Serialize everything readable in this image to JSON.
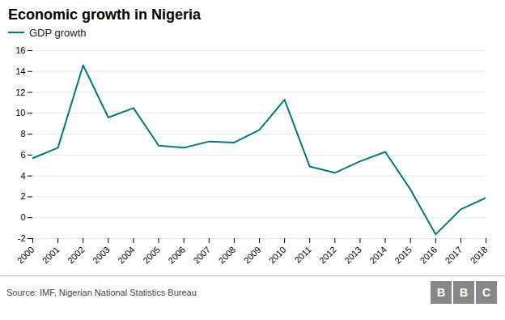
{
  "chart_data": {
    "type": "line",
    "title": "Economic growth in Nigeria",
    "x": [
      2000,
      2001,
      2002,
      2003,
      2004,
      2005,
      2006,
      2007,
      2008,
      2009,
      2010,
      2011,
      2012,
      2013,
      2014,
      2015,
      2016,
      2017,
      2018
    ],
    "series": [
      {
        "name": "GDP growth",
        "color": "#007a7a",
        "values": [
          5.7,
          6.7,
          14.6,
          9.6,
          10.5,
          6.9,
          6.7,
          7.3,
          7.2,
          8.4,
          11.3,
          4.9,
          4.3,
          5.4,
          6.3,
          2.7,
          -1.6,
          0.8,
          1.9
        ]
      }
    ],
    "xlim": [
      2000,
      2018
    ],
    "xticks": [
      2000,
      2001,
      2002,
      2003,
      2004,
      2005,
      2006,
      2007,
      2008,
      2009,
      2010,
      2011,
      2012,
      2013,
      2014,
      2015,
      2016,
      2017,
      2018
    ],
    "ylim": [
      -2,
      16
    ],
    "yticks": [
      -2,
      0,
      2,
      4,
      6,
      8,
      10,
      12,
      14,
      16
    ],
    "grid": "y",
    "legend": "top-left",
    "source": "Source: IMF, Nigerian National Statistics Bureau",
    "annotations": [
      "B",
      "B",
      "C"
    ]
  }
}
